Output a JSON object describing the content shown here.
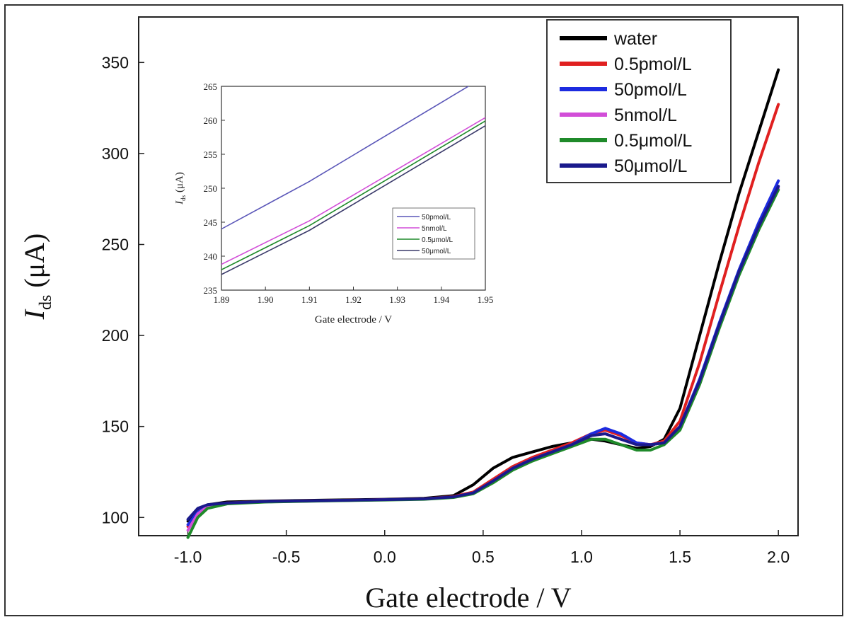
{
  "chart_data": [
    {
      "type": "line",
      "xlabel": "Gate electrode / V",
      "ylabel_main": "I",
      "ylabel_sub": "ds",
      "ylabel_unit": " (μA)",
      "xlim": [
        -1.25,
        2.1
      ],
      "ylim": [
        90,
        375
      ],
      "x_ticks": [
        -1.0,
        -0.5,
        0.0,
        0.5,
        1.0,
        1.5,
        2.0
      ],
      "x_tick_labels": [
        "-1.0",
        "-0.5",
        "0.0",
        "0.5",
        "1.0",
        "1.5",
        "2.0"
      ],
      "y_ticks": [
        100,
        150,
        200,
        250,
        300,
        350
      ],
      "y_tick_labels": [
        "100",
        "150",
        "200",
        "250",
        "300",
        "350"
      ],
      "legend_position": "top-right",
      "series": [
        {
          "name": "water",
          "color": "#000000",
          "x": [
            -1.0,
            -0.95,
            -0.9,
            -0.8,
            -0.6,
            -0.3,
            0.0,
            0.2,
            0.35,
            0.45,
            0.55,
            0.65,
            0.75,
            0.85,
            0.95,
            1.05,
            1.12,
            1.2,
            1.28,
            1.35,
            1.42,
            1.5,
            1.6,
            1.7,
            1.8,
            1.9,
            2.0
          ],
          "y": [
            98,
            104,
            107,
            108.5,
            109,
            109.5,
            110,
            110.5,
            112,
            118,
            127,
            133,
            136,
            139,
            141,
            143,
            142,
            140,
            138,
            139,
            143,
            160,
            200,
            240,
            278,
            312,
            346
          ]
        },
        {
          "name": "0.5pmol/L",
          "color": "#e02020",
          "x": [
            -1.0,
            -0.95,
            -0.9,
            -0.8,
            -0.6,
            -0.3,
            0.0,
            0.2,
            0.35,
            0.45,
            0.55,
            0.65,
            0.75,
            0.85,
            0.95,
            1.05,
            1.12,
            1.2,
            1.28,
            1.35,
            1.42,
            1.5,
            1.6,
            1.7,
            1.8,
            1.9,
            2.0
          ],
          "y": [
            95,
            103,
            106.5,
            108,
            108.8,
            109.3,
            109.8,
            110.2,
            111.5,
            114,
            121,
            128,
            133,
            137,
            141,
            146,
            148,
            145,
            141,
            140,
            142,
            153,
            185,
            223,
            260,
            295,
            327
          ]
        },
        {
          "name": "50pmol/L",
          "color": "#1c2be0",
          "x": [
            -1.0,
            -0.95,
            -0.9,
            -0.8,
            -0.6,
            -0.3,
            0.0,
            0.2,
            0.35,
            0.45,
            0.55,
            0.65,
            0.75,
            0.85,
            0.95,
            1.05,
            1.12,
            1.2,
            1.28,
            1.35,
            1.42,
            1.5,
            1.6,
            1.7,
            1.8,
            1.9,
            2.0
          ],
          "y": [
            96,
            103,
            106,
            107.8,
            108.6,
            109.2,
            109.7,
            110.1,
            111.2,
            113.5,
            120,
            127,
            132,
            136,
            140,
            146,
            149,
            146,
            141,
            140,
            141,
            150,
            176,
            207,
            236,
            262,
            285
          ]
        },
        {
          "name": "5nmol/L",
          "color": "#d24ed8",
          "x": [
            -1.0,
            -0.95,
            -0.9,
            -0.8,
            -0.6,
            -0.3,
            0.0,
            0.2,
            0.35,
            0.45,
            0.55,
            0.65,
            0.75,
            0.85,
            0.95,
            1.05,
            1.12,
            1.2,
            1.28,
            1.35,
            1.42,
            1.5,
            1.6,
            1.7,
            1.8,
            1.9,
            2.0
          ],
          "y": [
            93,
            102,
            106,
            107.8,
            108.7,
            109.2,
            109.7,
            110.1,
            111.2,
            113.5,
            120,
            127,
            132,
            136,
            140,
            145,
            146,
            143,
            140,
            140,
            141,
            149,
            174,
            205,
            234,
            259,
            281
          ]
        },
        {
          "name": "0.5μmol/L",
          "color": "#1f8a2a",
          "x": [
            -1.0,
            -0.95,
            -0.9,
            -0.8,
            -0.6,
            -0.3,
            0.0,
            0.2,
            0.35,
            0.45,
            0.55,
            0.65,
            0.75,
            0.85,
            0.95,
            1.05,
            1.12,
            1.2,
            1.28,
            1.35,
            1.42,
            1.5,
            1.6,
            1.7,
            1.8,
            1.9,
            2.0
          ],
          "y": [
            89,
            100,
            105,
            107.5,
            108.5,
            109.1,
            109.6,
            110,
            111,
            113,
            119,
            126,
            131,
            135,
            139,
            143,
            143,
            140,
            137,
            137,
            140,
            148,
            173,
            204,
            233,
            258,
            280
          ]
        },
        {
          "name": "50μmol/L",
          "color": "#1a1a8c",
          "x": [
            -1.0,
            -0.95,
            -0.9,
            -0.8,
            -0.6,
            -0.3,
            0.0,
            0.2,
            0.35,
            0.45,
            0.55,
            0.65,
            0.75,
            0.85,
            0.95,
            1.05,
            1.12,
            1.2,
            1.28,
            1.35,
            1.42,
            1.5,
            1.6,
            1.7,
            1.8,
            1.9,
            2.0
          ],
          "y": [
            99,
            105,
            107,
            108,
            108.8,
            109.3,
            109.8,
            110.2,
            111.3,
            113.5,
            120,
            127,
            132,
            136,
            140,
            145,
            146,
            143,
            140,
            140,
            141,
            150,
            175,
            206,
            235,
            260,
            282
          ]
        }
      ]
    },
    {
      "type": "line",
      "xlabel": "Gate electrode / V",
      "ylabel_main": "I",
      "ylabel_sub": "ds",
      "ylabel_unit": " (μA)",
      "xlim": [
        1.89,
        1.95
      ],
      "ylim": [
        235,
        265
      ],
      "x_ticks": [
        1.89,
        1.9,
        1.91,
        1.92,
        1.93,
        1.94,
        1.95
      ],
      "x_tick_labels": [
        "1.89",
        "1.90",
        "1.91",
        "1.92",
        "1.93",
        "1.94",
        "1.95"
      ],
      "y_ticks": [
        235,
        240,
        245,
        250,
        255,
        260,
        265
      ],
      "y_tick_labels": [
        "235",
        "240",
        "245",
        "250",
        "255",
        "260",
        "265"
      ],
      "legend_position": "bottom-right",
      "series": [
        {
          "name": "50pmol/L",
          "color": "#5a56b8",
          "x": [
            1.89,
            1.91,
            1.95
          ],
          "y": [
            244,
            251,
            266.5
          ]
        },
        {
          "name": "5nmol/L",
          "color": "#d24ed8",
          "x": [
            1.89,
            1.91,
            1.95
          ],
          "y": [
            238.8,
            245.2,
            260.4
          ]
        },
        {
          "name": "0.5μmol/L",
          "color": "#1f8a2a",
          "x": [
            1.89,
            1.91,
            1.95
          ],
          "y": [
            238.0,
            244.5,
            259.9
          ]
        },
        {
          "name": "50μmol/L",
          "color": "#3a3a6a",
          "x": [
            1.89,
            1.91,
            1.95
          ],
          "y": [
            237.3,
            243.8,
            259.2
          ]
        }
      ]
    }
  ]
}
